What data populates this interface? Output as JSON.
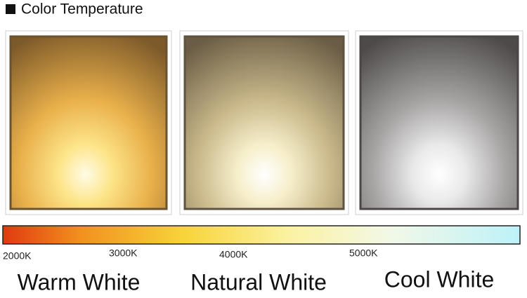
{
  "header": {
    "title": "Color Temperature"
  },
  "scale": {
    "labels": [
      "2000K",
      "3000K",
      "4000K",
      "5000K"
    ]
  },
  "panels": [
    {
      "label": "Warm White"
    },
    {
      "label": "Natural White"
    },
    {
      "label": "Cool White"
    }
  ]
}
